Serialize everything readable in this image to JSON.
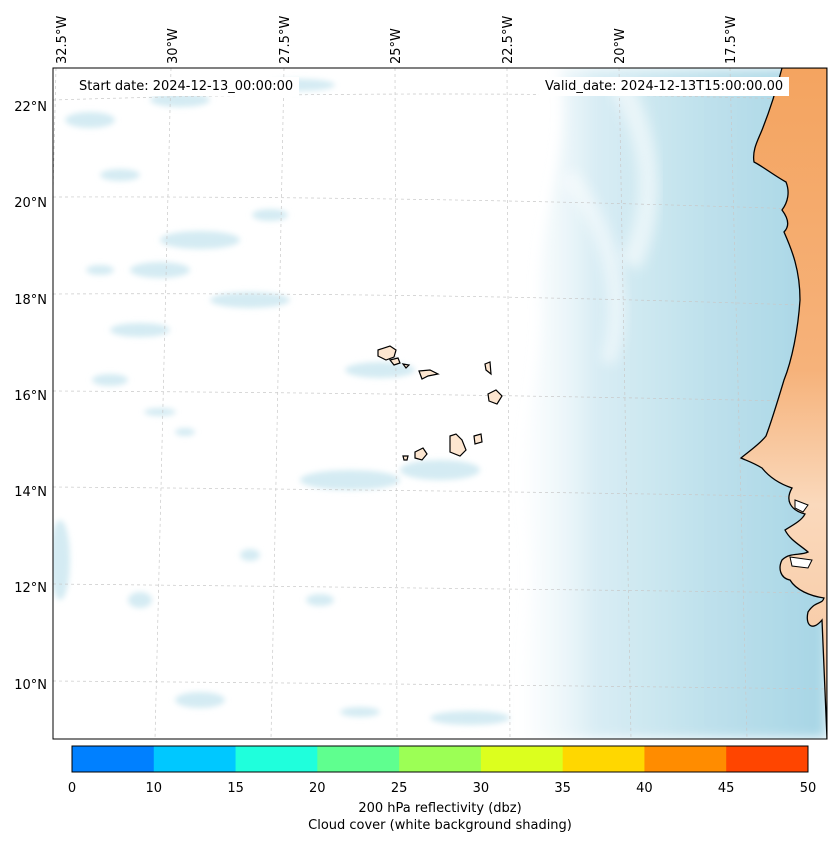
{
  "map": {
    "start_date": "Start date: 2024-12-13_00:00:00",
    "valid_date": "Valid_date: 2024-12-13T15:00:00.00",
    "longitude_labels": [
      "32.5°W",
      "30°W",
      "27.5°W",
      "25°W",
      "22.5°W",
      "20°W",
      "17.5°W"
    ],
    "latitude_labels": [
      "22°N",
      "20°N",
      "18°N",
      "16°N",
      "14°N",
      "12°N",
      "10°N"
    ],
    "colors": {
      "cloud_light": "#e4f2f7",
      "cloud_mid": "#bfe1ec",
      "cloud_dense": "#a6d5e5",
      "land_desert": "#f4a460",
      "land_light": "#fad9bc",
      "gridline": "#c8c8c8"
    }
  },
  "colorbar": {
    "ticks": [
      "0",
      "10",
      "15",
      "20",
      "25",
      "30",
      "35",
      "40",
      "45",
      "50"
    ],
    "colors": [
      "#0080ff",
      "#00c8ff",
      "#1fffdc",
      "#5fff8f",
      "#9cff55",
      "#dcff1e",
      "#ffd700",
      "#ff8c00",
      "#ff4500"
    ],
    "title_line1": "200 hPa reflectivity (dbz)",
    "title_line2": "Cloud cover (white background shading)"
  }
}
